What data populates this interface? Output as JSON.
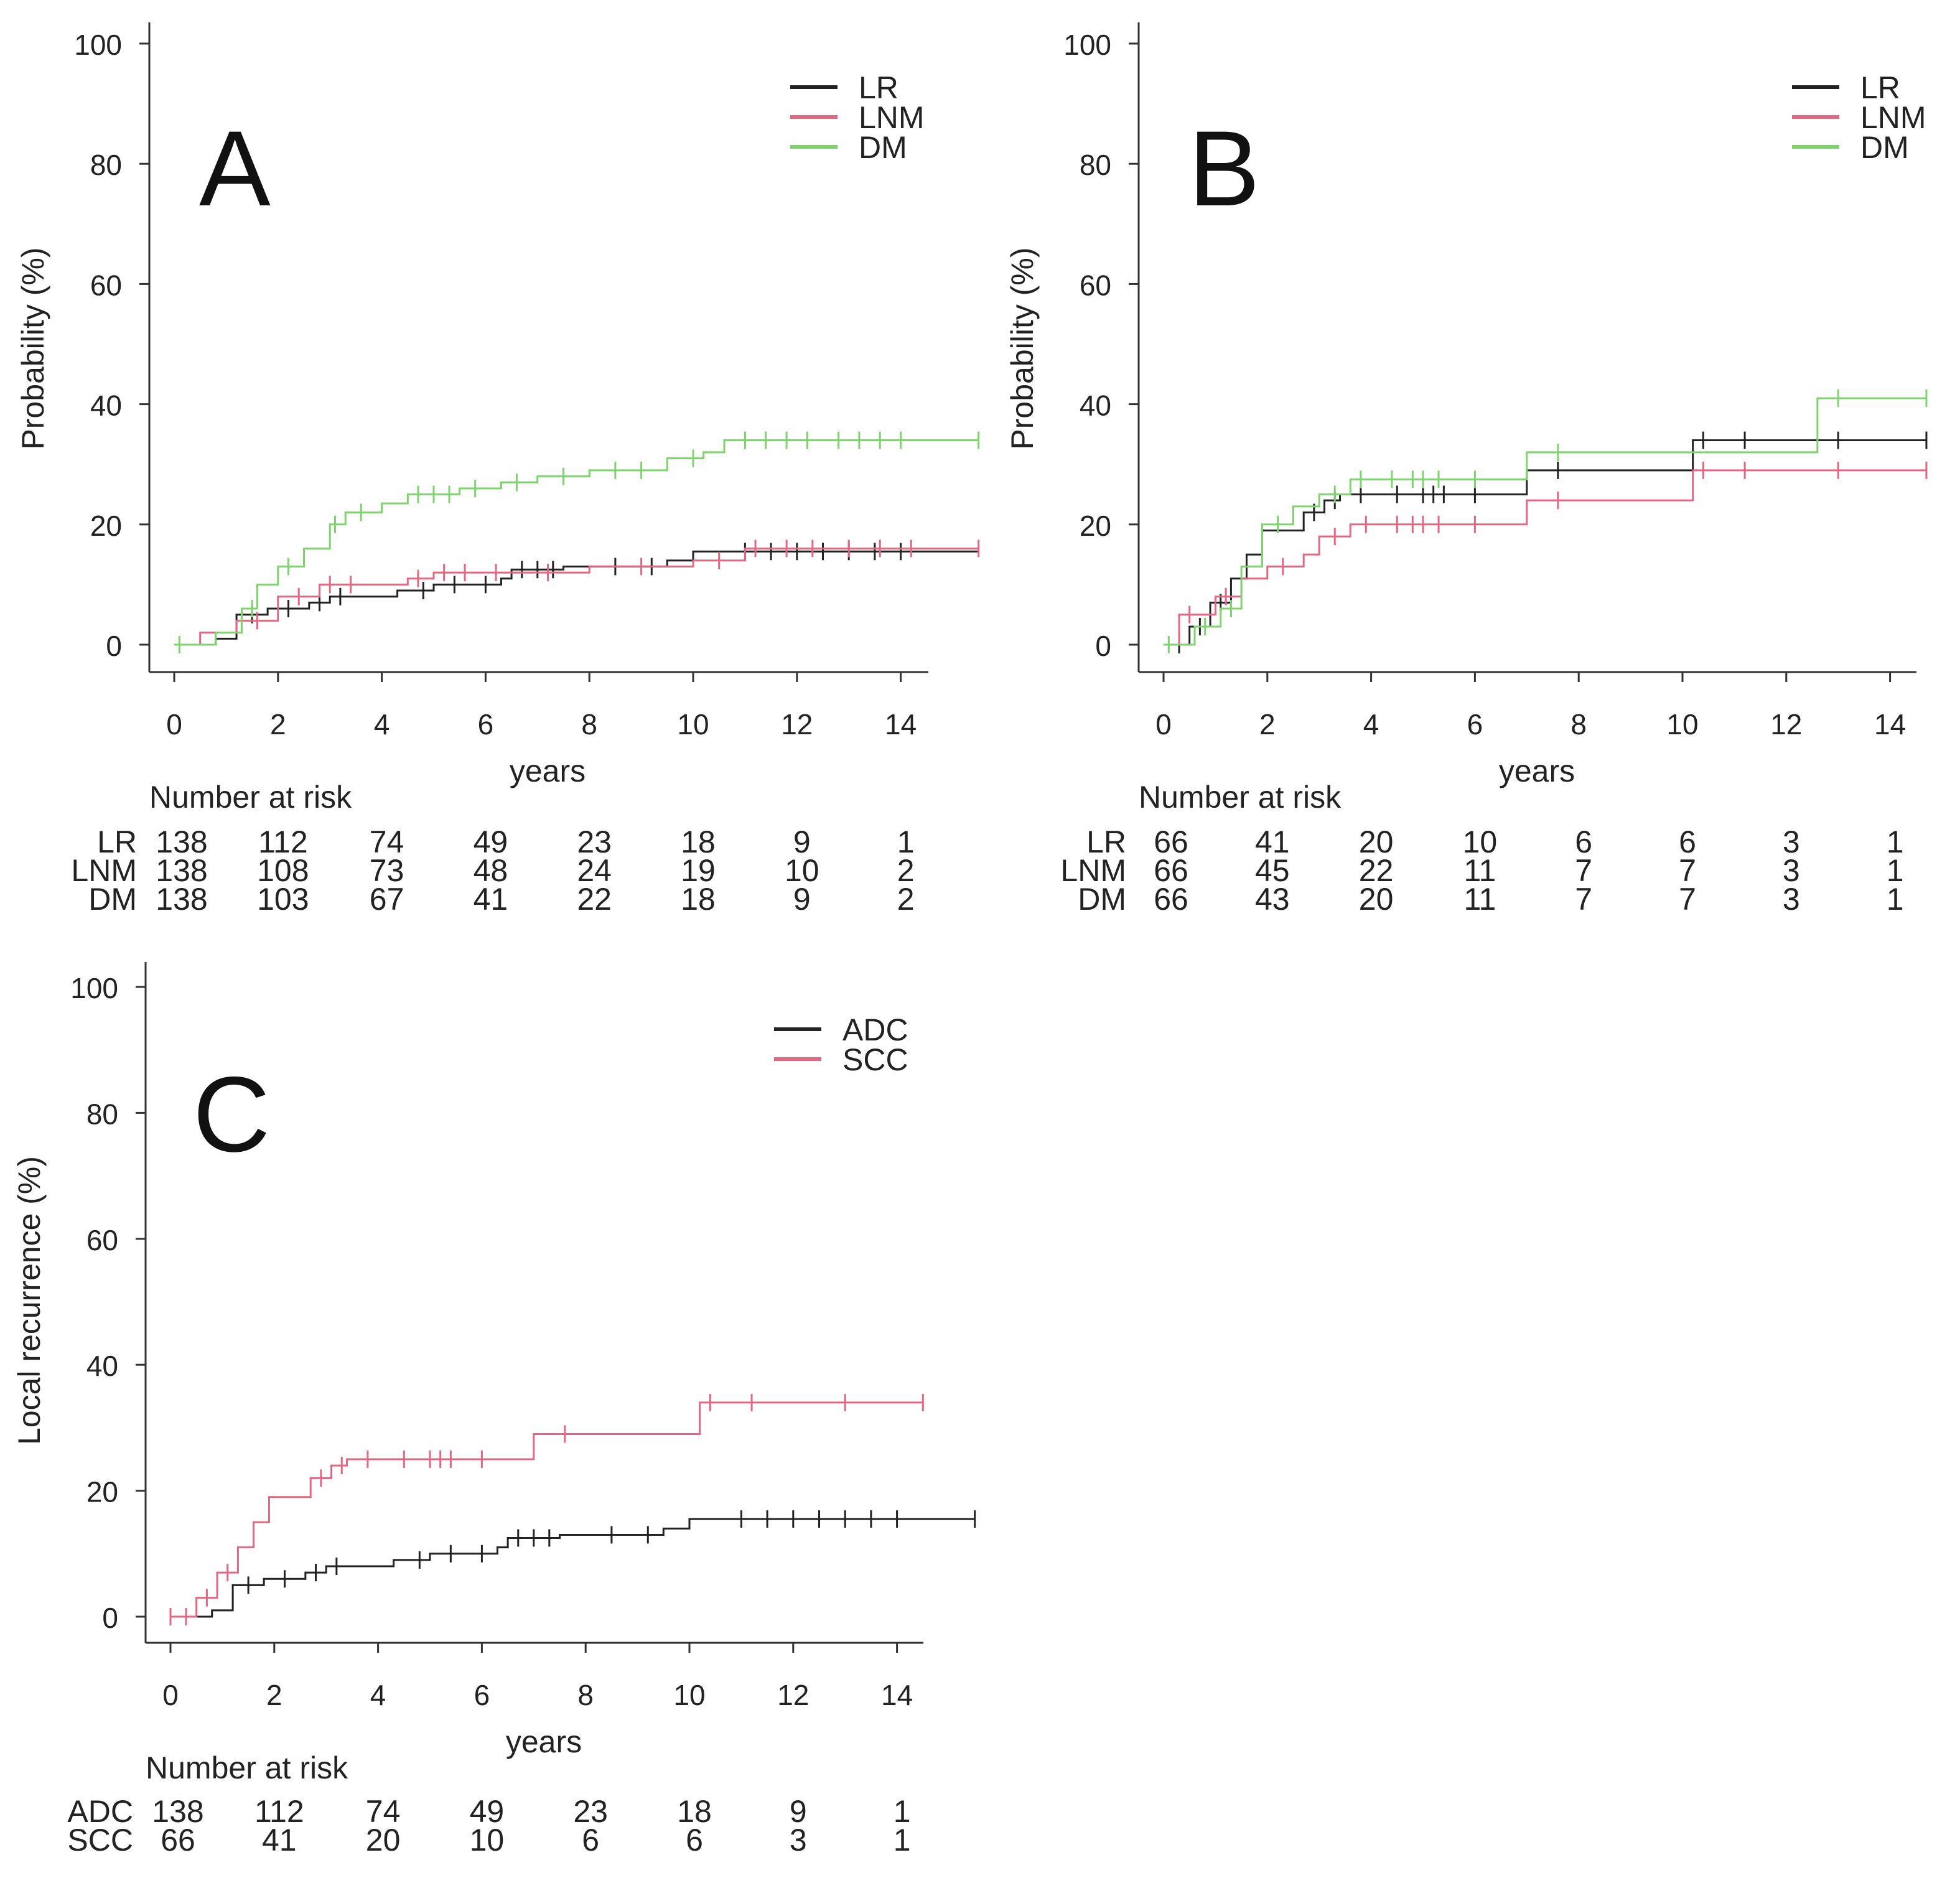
{
  "colors": {
    "LR": "#222222",
    "LNM": "#e06882",
    "DM": "#7fd36e",
    "ADC": "#222222",
    "SCC": "#e06882"
  },
  "chart_data": [
    {
      "type": "line",
      "panel": "A",
      "ylabel": "Probability (%)",
      "xlabel": "years",
      "xlim": [
        0,
        15.5
      ],
      "ylim": [
        0,
        100
      ],
      "xticks": [
        "0",
        "2",
        "4",
        "6",
        "8",
        "10",
        "12",
        "14"
      ],
      "yticks": [
        "0",
        "20",
        "40",
        "60",
        "80",
        "100"
      ],
      "legend": [
        "LR",
        "LNM",
        "DM"
      ],
      "legend_position": "top-right",
      "series": [
        {
          "name": "LR",
          "x": [
            0,
            0.8,
            1.2,
            1.8,
            2.6,
            3.0,
            4.3,
            5.0,
            6.3,
            6.5,
            7.5,
            9.5,
            10.0,
            15.5
          ],
          "y": [
            0,
            1,
            5,
            6,
            7,
            8,
            9,
            10,
            11,
            12.5,
            13,
            14,
            15.5,
            15.5
          ],
          "censor": [
            1.5,
            2.2,
            2.8,
            3.2,
            4.8,
            5.4,
            6.0,
            6.7,
            7.0,
            7.3,
            8.5,
            9.2,
            11,
            11.5,
            12,
            12.5,
            13,
            13.5,
            14
          ]
        },
        {
          "name": "LNM",
          "x": [
            0,
            0.5,
            1.2,
            2.0,
            2.8,
            4.5,
            5.0,
            8.0,
            10.0,
            11.0,
            15.5
          ],
          "y": [
            0,
            2,
            4,
            8,
            10,
            11,
            12,
            13,
            14,
            16,
            16
          ],
          "censor": [
            1.3,
            1.6,
            2.4,
            3.0,
            3.4,
            4.7,
            5.2,
            5.6,
            6.2,
            7.2,
            9.0,
            10.5,
            11.2,
            11.8,
            12.3,
            13,
            13.6,
            14.2,
            15.5
          ]
        },
        {
          "name": "DM",
          "x": [
            0,
            0.8,
            1.3,
            1.6,
            2.0,
            2.5,
            3.0,
            3.3,
            4.0,
            4.5,
            5.5,
            6.3,
            7.0,
            8.0,
            9.5,
            10.2,
            10.6,
            15.5
          ],
          "y": [
            0,
            2,
            6,
            10,
            13,
            16,
            20,
            22,
            23.5,
            25,
            26,
            27,
            28,
            29,
            31,
            32,
            34,
            34
          ],
          "censor": [
            0.1,
            1.5,
            2.2,
            3.1,
            3.6,
            4.7,
            5.0,
            5.3,
            5.8,
            6.6,
            7.5,
            8.5,
            9.0,
            10.0,
            11.0,
            11.4,
            11.8,
            12.2,
            12.8,
            13.2,
            13.6,
            14.0,
            15.5
          ]
        }
      ],
      "risk_table": {
        "title": "Number at risk",
        "rows": [
          {
            "label": "LR",
            "values": [
              "138",
              "112",
              "74",
              "49",
              "23",
              "18",
              "9",
              "1"
            ]
          },
          {
            "label": "LNM",
            "values": [
              "138",
              "108",
              "73",
              "48",
              "24",
              "19",
              "10",
              "2"
            ]
          },
          {
            "label": "DM",
            "values": [
              "138",
              "103",
              "67",
              "41",
              "22",
              "18",
              "9",
              "2"
            ]
          }
        ]
      }
    },
    {
      "type": "line",
      "panel": "B",
      "ylabel": "Probability (%)",
      "xlabel": "years",
      "xlim": [
        0,
        15
      ],
      "ylim": [
        0,
        100
      ],
      "xticks": [
        "0",
        "2",
        "4",
        "6",
        "8",
        "10",
        "12",
        "14"
      ],
      "yticks": [
        "0",
        "20",
        "40",
        "60",
        "80",
        "100"
      ],
      "legend": [
        "LR",
        "LNM",
        "DM"
      ],
      "legend_position": "top-right",
      "series": [
        {
          "name": "LR",
          "x": [
            0,
            0.5,
            0.9,
            1.3,
            1.6,
            1.9,
            2.7,
            3.1,
            3.4,
            7.0,
            10.2,
            14.7
          ],
          "y": [
            0,
            3,
            7,
            11,
            15,
            19,
            22,
            24,
            25,
            29,
            34,
            34
          ],
          "censor": [
            0.3,
            0.7,
            1.1,
            2.9,
            3.3,
            3.8,
            4.5,
            5.0,
            5.2,
            5.4,
            6.0,
            7.6,
            10.4,
            11.2,
            13.0,
            14.7
          ]
        },
        {
          "name": "LNM",
          "x": [
            0,
            0.3,
            1.0,
            1.5,
            2.0,
            2.7,
            3.0,
            3.6,
            7.0,
            10.2,
            14.7
          ],
          "y": [
            0,
            5,
            8,
            11,
            13,
            15,
            18,
            20,
            24,
            29,
            29
          ],
          "censor": [
            0.5,
            1.2,
            2.3,
            3.3,
            3.9,
            4.5,
            4.8,
            5.0,
            5.3,
            6.0,
            7.6,
            10.4,
            11.2,
            13.0,
            14.7
          ]
        },
        {
          "name": "DM",
          "x": [
            0,
            0.6,
            1.1,
            1.5,
            1.9,
            2.5,
            3.0,
            3.6,
            7.0,
            12.6,
            14.7
          ],
          "y": [
            0,
            3,
            6,
            13,
            20,
            23,
            25,
            27.5,
            32,
            41,
            41
          ],
          "censor": [
            0.1,
            0.8,
            1.3,
            2.2,
            3.3,
            3.8,
            4.4,
            4.8,
            5.0,
            5.3,
            6.0,
            7.6,
            13.0,
            14.7
          ]
        }
      ],
      "risk_table": {
        "title": "Number at risk",
        "rows": [
          {
            "label": "LR",
            "values": [
              "66",
              "41",
              "20",
              "10",
              "6",
              "6",
              "3",
              "1"
            ]
          },
          {
            "label": "LNM",
            "values": [
              "66",
              "45",
              "22",
              "11",
              "7",
              "7",
              "3",
              "1"
            ]
          },
          {
            "label": "DM",
            "values": [
              "66",
              "43",
              "20",
              "11",
              "7",
              "7",
              "3",
              "1"
            ]
          }
        ]
      }
    },
    {
      "type": "line",
      "panel": "C",
      "ylabel": "Local recurrence (%)",
      "xlabel": "years",
      "xlim": [
        0,
        15.5
      ],
      "ylim": [
        0,
        100
      ],
      "xticks": [
        "0",
        "2",
        "4",
        "6",
        "8",
        "10",
        "12",
        "14"
      ],
      "yticks": [
        "0",
        "20",
        "40",
        "60",
        "80",
        "100"
      ],
      "legend": [
        "ADC",
        "SCC"
      ],
      "legend_position": "top-right",
      "series": [
        {
          "name": "ADC",
          "x": [
            0,
            0.8,
            1.2,
            1.8,
            2.6,
            3.0,
            4.3,
            5.0,
            6.3,
            6.5,
            7.5,
            9.5,
            10.0,
            15.5
          ],
          "y": [
            0,
            1,
            5,
            6,
            7,
            8,
            9,
            10,
            11,
            12.5,
            13,
            14,
            15.5,
            15.5
          ],
          "censor": [
            1.5,
            2.2,
            2.8,
            3.2,
            4.8,
            5.4,
            6.0,
            6.7,
            7.0,
            7.3,
            8.5,
            9.2,
            11,
            11.5,
            12,
            12.5,
            13,
            13.5,
            14,
            15.5
          ]
        },
        {
          "name": "SCC",
          "x": [
            0,
            0.5,
            0.9,
            1.3,
            1.6,
            1.9,
            2.7,
            3.1,
            3.4,
            7.0,
            10.2,
            14.5
          ],
          "y": [
            0,
            3,
            7,
            11,
            15,
            19,
            22,
            24,
            25,
            29,
            34,
            34
          ],
          "censor": [
            0,
            0.3,
            0.7,
            1.1,
            2.9,
            3.3,
            3.8,
            4.5,
            5.0,
            5.2,
            5.4,
            6.0,
            7.6,
            10.4,
            11.2,
            13.0,
            14.5
          ]
        }
      ],
      "risk_table": {
        "title": "Number at risk",
        "rows": [
          {
            "label": "ADC",
            "values": [
              "138",
              "112",
              "74",
              "49",
              "23",
              "18",
              "9",
              "1"
            ]
          },
          {
            "label": "SCC",
            "values": [
              "66",
              "41",
              "20",
              "10",
              "6",
              "6",
              "3",
              "1"
            ]
          }
        ]
      }
    }
  ]
}
